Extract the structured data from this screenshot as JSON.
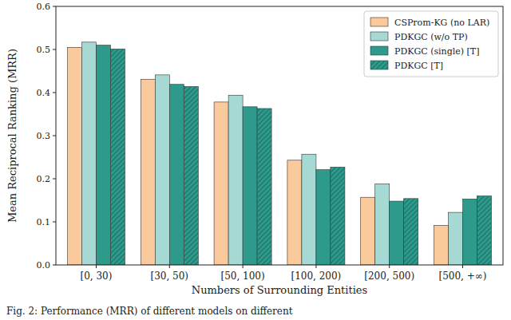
{
  "chart_data": {
    "type": "bar",
    "x_label": "Numbers of Surrounding Entities",
    "y_label": "Mean Reciprocal Ranking (MRR)",
    "caption": "Fig. 2:  Performance (MRR) of different models on different",
    "categories": [
      "[0, 30)",
      "[30, 50)",
      "[50, 100)",
      "[100, 200)",
      "[200, 500)",
      "[500, +∞)"
    ],
    "series": [
      {
        "name": "CSProm-KG (no LAR)",
        "color": "#fac99c",
        "values": [
          0.505,
          0.431,
          0.378,
          0.243,
          0.157,
          0.092
        ]
      },
      {
        "name": "PDKGC (w/o TP)",
        "color": "#a6d9d3",
        "values": [
          0.517,
          0.441,
          0.394,
          0.257,
          0.188,
          0.122
        ]
      },
      {
        "name": "PDKGC (single) [T]",
        "color": "#2e9a8c",
        "values": [
          0.51,
          0.419,
          0.367,
          0.221,
          0.148,
          0.153
        ]
      },
      {
        "name": "PDKGC [T]",
        "color": "#2e9a8c",
        "values": [
          0.501,
          0.414,
          0.363,
          0.227,
          0.154,
          0.16
        ]
      }
    ],
    "ylim": [
      0,
      0.6
    ],
    "yticks": [
      {
        "value": 0,
        "label": "0.0"
      },
      0.1,
      0.2,
      0.3,
      0.4,
      0.5,
      0.6
    ],
    "legend": "upper right",
    "grid": false
  }
}
